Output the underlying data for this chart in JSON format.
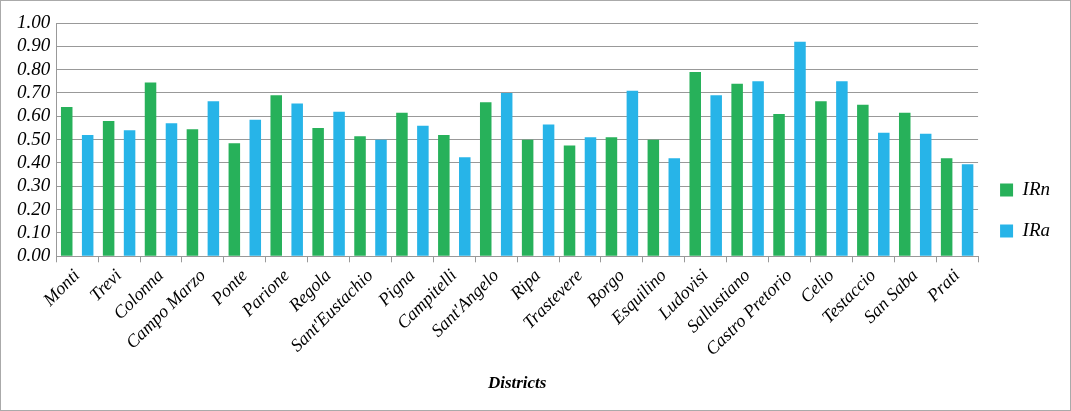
{
  "chart_data": {
    "type": "bar",
    "xlabel": "Districts",
    "categories": [
      "Monti",
      "Trevi",
      "Colonna",
      "Campo Marzo",
      "Ponte",
      "Parione",
      "Regola",
      "Sant'Eustachio",
      "Pigna",
      "Campitelli",
      "Sant'Angelo",
      "Ripa",
      "Trastevere",
      "Borgo",
      "Esquilino",
      "Ludovisi",
      "Sallustiano",
      "Castro Pretorio",
      "Celio",
      "Testaccio",
      "San Saba",
      "Prati"
    ],
    "series": [
      {
        "name": "IRn",
        "color": "#27b15a",
        "values": [
          0.64,
          0.58,
          0.745,
          0.545,
          0.485,
          0.69,
          0.55,
          0.515,
          0.615,
          0.52,
          0.66,
          0.5,
          0.475,
          0.51,
          0.5,
          0.79,
          0.74,
          0.61,
          0.665,
          0.65,
          0.615,
          0.42
        ]
      },
      {
        "name": "IRa",
        "color": "#27b4e8",
        "values": [
          0.52,
          0.54,
          0.57,
          0.665,
          0.585,
          0.655,
          0.62,
          0.5,
          0.56,
          0.425,
          0.7,
          0.565,
          0.51,
          0.71,
          0.42,
          0.69,
          0.75,
          0.92,
          0.75,
          0.53,
          0.525,
          0.395
        ]
      }
    ],
    "ylim": [
      0,
      1
    ],
    "yticks": [
      {
        "value": 0,
        "label": "0.00"
      },
      {
        "value": 0.1,
        "label": "0.10"
      },
      {
        "value": 0.2,
        "label": "0.20"
      },
      {
        "value": 0.3,
        "label": "0.30"
      },
      {
        "value": 0.4,
        "label": "0.40"
      },
      {
        "value": 0.5,
        "label": "0.50"
      },
      {
        "value": 0.6,
        "label": "0.60"
      },
      {
        "value": 0.7,
        "label": "0.70"
      },
      {
        "value": 0.8,
        "label": "0.80"
      },
      {
        "value": 0.9,
        "label": "0.90"
      },
      {
        "value": 1,
        "label": "1.00"
      }
    ],
    "grid": "y",
    "legend": "right"
  }
}
